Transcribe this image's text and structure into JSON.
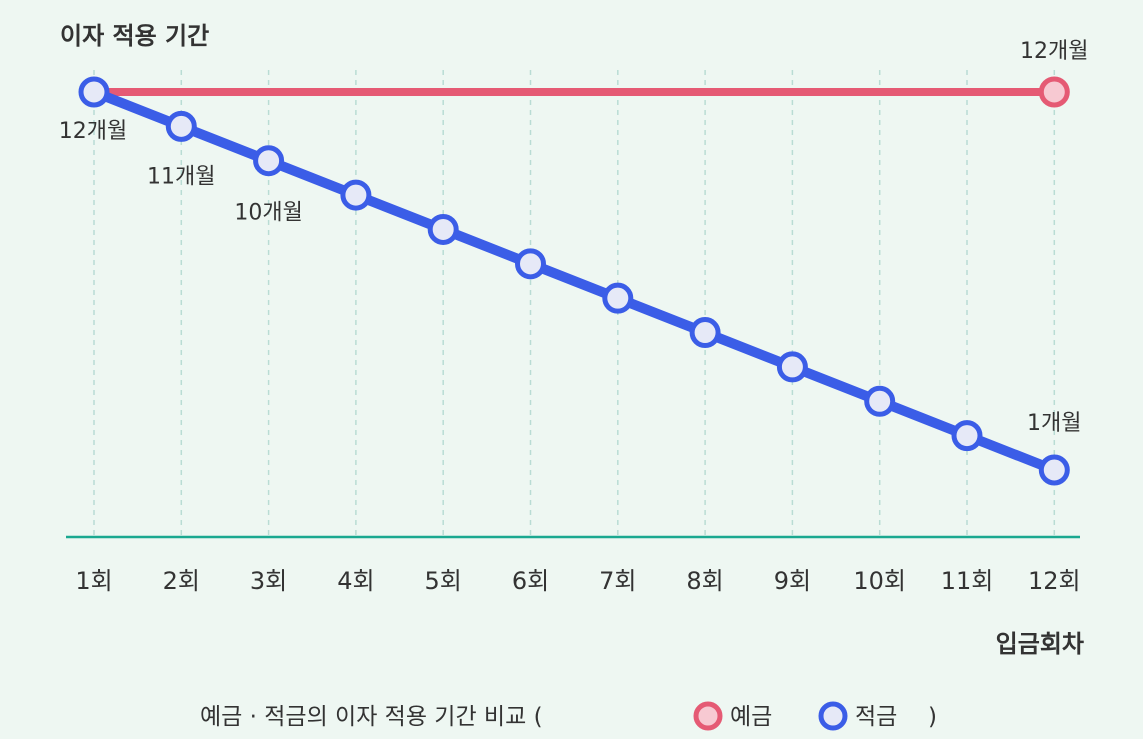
{
  "chart_data": {
    "type": "line",
    "y_title": "이자 적용 기간",
    "xlabel": "입금회차",
    "categories": [
      "1회",
      "2회",
      "3회",
      "4회",
      "5회",
      "6회",
      "7회",
      "8회",
      "9회",
      "10회",
      "11회",
      "12회"
    ],
    "y_unit": "개월",
    "ylim": [
      1,
      12
    ],
    "grid": {
      "vertical": true,
      "style": "dashed"
    },
    "series": [
      {
        "name": "예금",
        "color": "#e55a74",
        "marker_fill": "#f7c9d2",
        "values": [
          12,
          12,
          12,
          12,
          12,
          12,
          12,
          12,
          12,
          12,
          12,
          12
        ],
        "point_labels": [
          {
            "index": 11,
            "text": "12개월"
          }
        ]
      },
      {
        "name": "적금",
        "color": "#3b5de7",
        "marker_fill": "#e6e9f7",
        "values": [
          12,
          11,
          10,
          9,
          8,
          7,
          6,
          5,
          4,
          3,
          2,
          1
        ],
        "point_labels": [
          {
            "index": 0,
            "text": "12개월"
          },
          {
            "index": 1,
            "text": "11개월"
          },
          {
            "index": 2,
            "text": "10개월"
          },
          {
            "index": 11,
            "text": "1개월"
          }
        ]
      }
    ],
    "caption": {
      "prefix": "예금 · 적금의 이자 적용 기간 비교 (",
      "suffix": ")"
    },
    "colors": {
      "axis": "#1aa890",
      "grid": "#b9dcd4",
      "text": "#333333",
      "background": "#eef7f2"
    }
  }
}
